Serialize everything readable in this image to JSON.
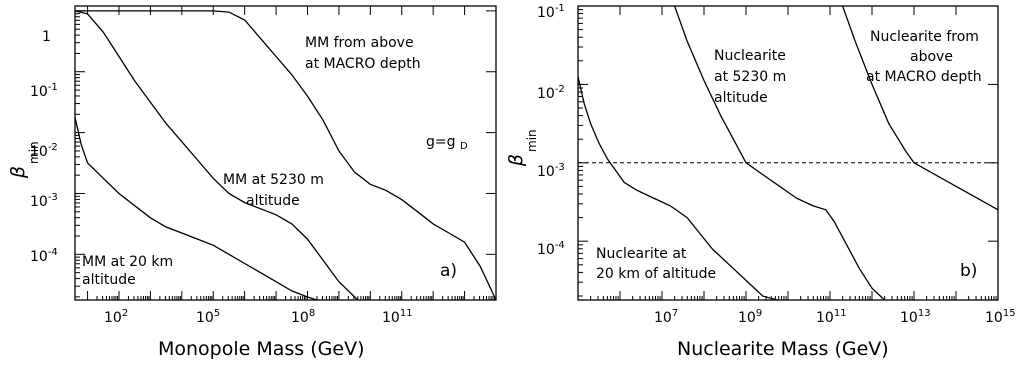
{
  "chart_data": [
    {
      "type": "line",
      "panel_label": "a)",
      "xlabel": "Monopole Mass (GeV)",
      "ylabel": "β",
      "ylabel_sub": "min",
      "xscale": "log",
      "yscale": "log",
      "xlim_log10": [
        0.6,
        14.0
      ],
      "ylim_log10": [
        -4.75,
        0.08
      ],
      "x_tick_labels": [
        "10^2",
        "10^5",
        "10^8",
        "10^11"
      ],
      "y_tick_labels": [
        "1",
        "10^-1",
        "10^-2",
        "10^-3",
        "10^-4"
      ],
      "annotations": [
        "MM from above",
        "at MACRO depth",
        "g=g",
        "D",
        "MM at 5230 m",
        "altitude",
        "MM at 20 km",
        "altitude"
      ],
      "series": [
        {
          "log10_x": [
            0.6,
            1.0,
            1.5,
            2.5,
            3.5,
            4.5,
            5.0,
            5.5,
            6.0,
            6.5,
            7.0,
            7.5,
            8.0,
            8.5,
            9.0,
            9.5,
            10.0,
            10.5,
            11.0,
            11.5,
            12.0,
            12.5,
            13.0,
            13.5,
            14.0
          ],
          "log10_y": [
            0.0,
            0.0,
            0.0,
            0.0,
            0.0,
            0.0,
            0.0,
            -0.02,
            -0.15,
            -0.45,
            -0.75,
            -1.05,
            -1.4,
            -1.8,
            -2.3,
            -2.65,
            -2.85,
            -2.95,
            -3.1,
            -3.3,
            -3.5,
            -3.65,
            -3.8,
            -4.2,
            -4.75
          ]
        },
        {
          "log10_x": [
            0.6,
            1.0,
            1.5,
            2.0,
            2.5,
            3.0,
            3.5,
            4.0,
            4.5,
            5.0,
            5.5,
            6.0,
            6.5,
            7.0,
            7.5,
            8.0,
            8.5,
            9.0,
            9.6
          ],
          "log10_y": [
            0.0,
            -0.05,
            -0.35,
            -0.75,
            -1.15,
            -1.5,
            -1.85,
            -2.15,
            -2.45,
            -2.75,
            -3.0,
            -3.15,
            -3.25,
            -3.35,
            -3.5,
            -3.75,
            -4.1,
            -4.45,
            -4.75
          ]
        },
        {
          "log10_x": [
            0.6,
            0.8,
            1.0,
            1.5,
            2.0,
            2.5,
            3.0,
            3.5,
            4.0,
            4.5,
            5.0,
            5.5,
            6.0,
            6.5,
            7.0,
            7.5,
            8.0,
            8.3
          ],
          "log10_y": [
            -1.75,
            -2.2,
            -2.5,
            -2.75,
            -3.0,
            -3.2,
            -3.4,
            -3.55,
            -3.65,
            -3.75,
            -3.85,
            -4.0,
            -4.15,
            -4.3,
            -4.45,
            -4.6,
            -4.7,
            -4.75
          ]
        }
      ]
    },
    {
      "type": "line",
      "panel_label": "b)",
      "xlabel": "Nuclearite Mass (GeV)",
      "ylabel": "β",
      "ylabel_sub": "min",
      "xscale": "log",
      "yscale": "log",
      "xlim_log10": [
        5.0,
        15.0
      ],
      "ylim_log10": [
        -4.75,
        -1.0
      ],
      "x_tick_labels": [
        "10^7",
        "10^9",
        "10^11",
        "10^13",
        "10^15"
      ],
      "y_tick_labels": [
        "10^-1",
        "10^-2",
        "10^-3",
        "10^-4"
      ],
      "reference_line_log10_y": -3.0,
      "annotations": [
        "Nuclearite",
        "at 5230 m",
        "altitude",
        "Nuclearite from",
        "above",
        "at MACRO depth",
        "Nuclearite at",
        "20 km of altitude"
      ],
      "series": [
        {
          "log10_x": [
            5.0,
            5.15,
            5.3,
            5.5,
            5.7,
            5.9,
            6.1,
            6.4,
            6.8,
            7.2,
            7.6,
            7.9,
            8.2,
            8.6,
            9.0,
            9.4,
            9.75
          ],
          "log10_y": [
            -1.9,
            -2.25,
            -2.5,
            -2.75,
            -2.95,
            -3.1,
            -3.25,
            -3.35,
            -3.45,
            -3.55,
            -3.7,
            -3.9,
            -4.1,
            -4.3,
            -4.5,
            -4.7,
            -4.75
          ]
        },
        {
          "log10_x": [
            7.3,
            7.6,
            8.0,
            8.4,
            8.8,
            9.0,
            9.4,
            9.8,
            10.2,
            10.6,
            10.9,
            11.1,
            11.4,
            11.7,
            12.0,
            12.3
          ],
          "log10_y": [
            -1.0,
            -1.45,
            -1.95,
            -2.4,
            -2.8,
            -3.0,
            -3.15,
            -3.3,
            -3.45,
            -3.55,
            -3.6,
            -3.75,
            -4.05,
            -4.35,
            -4.6,
            -4.75
          ]
        },
        {
          "log10_x": [
            11.3,
            11.6,
            12.0,
            12.4,
            12.8,
            13.0,
            13.5,
            14.0,
            14.5,
            15.0
          ],
          "log10_y": [
            -1.0,
            -1.45,
            -2.0,
            -2.5,
            -2.85,
            -3.0,
            -3.15,
            -3.3,
            -3.45,
            -3.6
          ]
        }
      ]
    }
  ]
}
